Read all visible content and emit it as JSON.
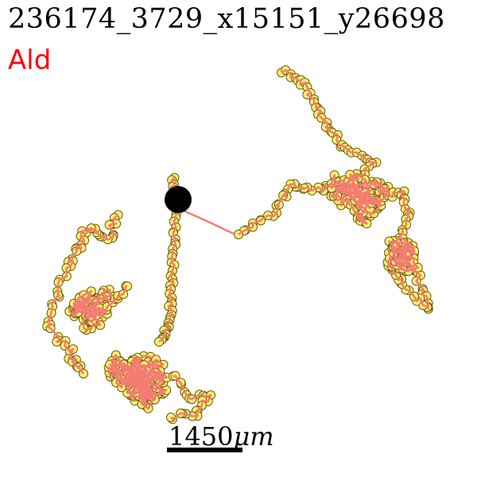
{
  "title": "236174_3729_x15151_y26698",
  "label": "Ald",
  "scale_bar": {
    "value": "1450",
    "unit": "μm"
  },
  "colors": {
    "title": "#000000",
    "label": "#ff0000",
    "path_line": "#f47c72",
    "point_fill": "#fff06e",
    "point_edge": "#6b5a14",
    "start_marker": "#000000",
    "scale_bar": "#000000"
  }
}
